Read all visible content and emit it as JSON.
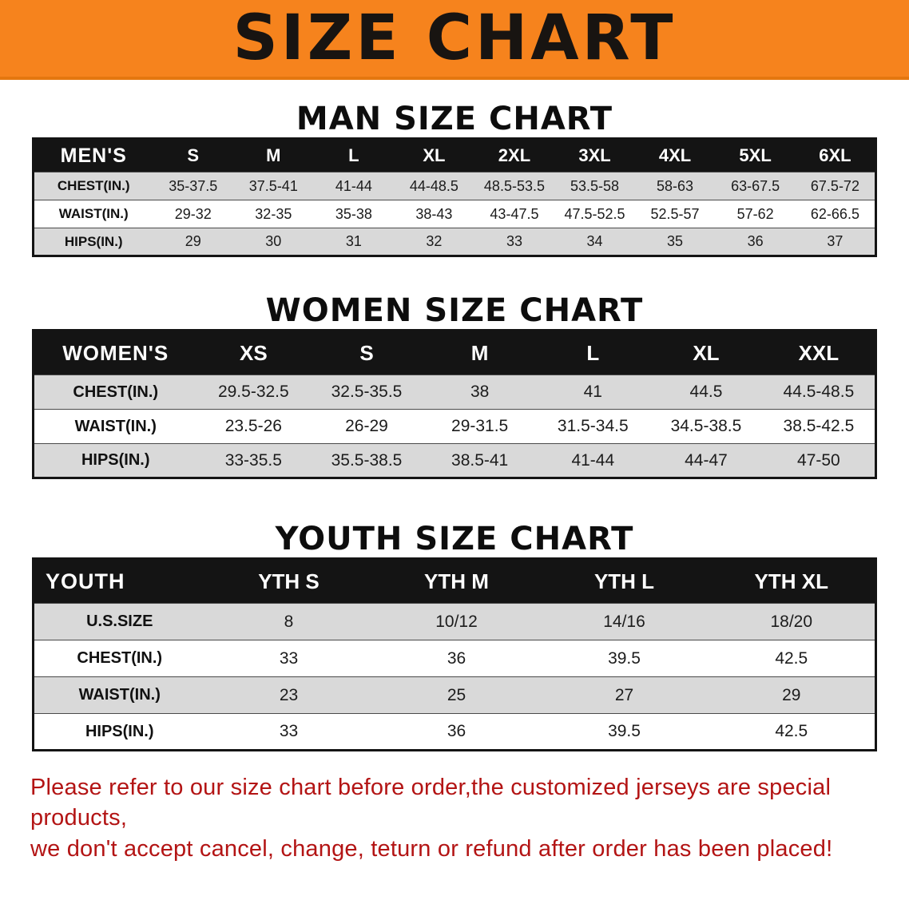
{
  "banner": {
    "title": "SIZE CHART",
    "bg_color": "#f6831d",
    "text_color": "#181411"
  },
  "sections": [
    {
      "heading": "MAN SIZE CHART",
      "table": {
        "header": [
          "MEN'S",
          "S",
          "M",
          "L",
          "XL",
          "2XL",
          "3XL",
          "4XL",
          "5XL",
          "6XL"
        ],
        "rows": [
          [
            "CHEST(IN.)",
            "35-37.5",
            "37.5-41",
            "41-44",
            "44-48.5",
            "48.5-53.5",
            "53.5-58",
            "58-63",
            "63-67.5",
            "67.5-72"
          ],
          [
            "WAIST(IN.)",
            "29-32",
            "32-35",
            "35-38",
            "38-43",
            "43-47.5",
            "47.5-52.5",
            "52.5-57",
            "57-62",
            "62-66.5"
          ],
          [
            "HIPS(IN.)",
            "29",
            "30",
            "31",
            "32",
            "33",
            "34",
            "35",
            "36",
            "37"
          ]
        ]
      }
    },
    {
      "heading": "WOMEN SIZE CHART",
      "table": {
        "header": [
          "WOMEN'S",
          "XS",
          "S",
          "M",
          "L",
          "XL",
          "XXL"
        ],
        "rows": [
          [
            "CHEST(IN.)",
            "29.5-32.5",
            "32.5-35.5",
            "38",
            "41",
            "44.5",
            "44.5-48.5"
          ],
          [
            "WAIST(IN.)",
            "23.5-26",
            "26-29",
            "29-31.5",
            "31.5-34.5",
            "34.5-38.5",
            "38.5-42.5"
          ],
          [
            "HIPS(IN.)",
            "33-35.5",
            "35.5-38.5",
            "38.5-41",
            "41-44",
            "44-47",
            "47-50"
          ]
        ]
      }
    },
    {
      "heading": "YOUTH SIZE CHART",
      "table": {
        "header": [
          "YOUTH",
          "YTH S",
          "YTH M",
          "YTH L",
          "YTH XL"
        ],
        "rows": [
          [
            "U.S.SIZE",
            "8",
            "10/12",
            "14/16",
            "18/20"
          ],
          [
            "CHEST(IN.)",
            "33",
            "36",
            "39.5",
            "42.5"
          ],
          [
            "WAIST(IN.)",
            "23",
            "25",
            "27",
            "29"
          ],
          [
            "HIPS(IN.)",
            "33",
            "36",
            "39.5",
            "42.5"
          ]
        ]
      }
    }
  ],
  "disclaimer": {
    "line1": "Please refer to our size chart before order,the customized jerseys are special products,",
    "line2": "we don't accept cancel, change, teturn or refund after order has been placed!",
    "color": "#b31414"
  }
}
